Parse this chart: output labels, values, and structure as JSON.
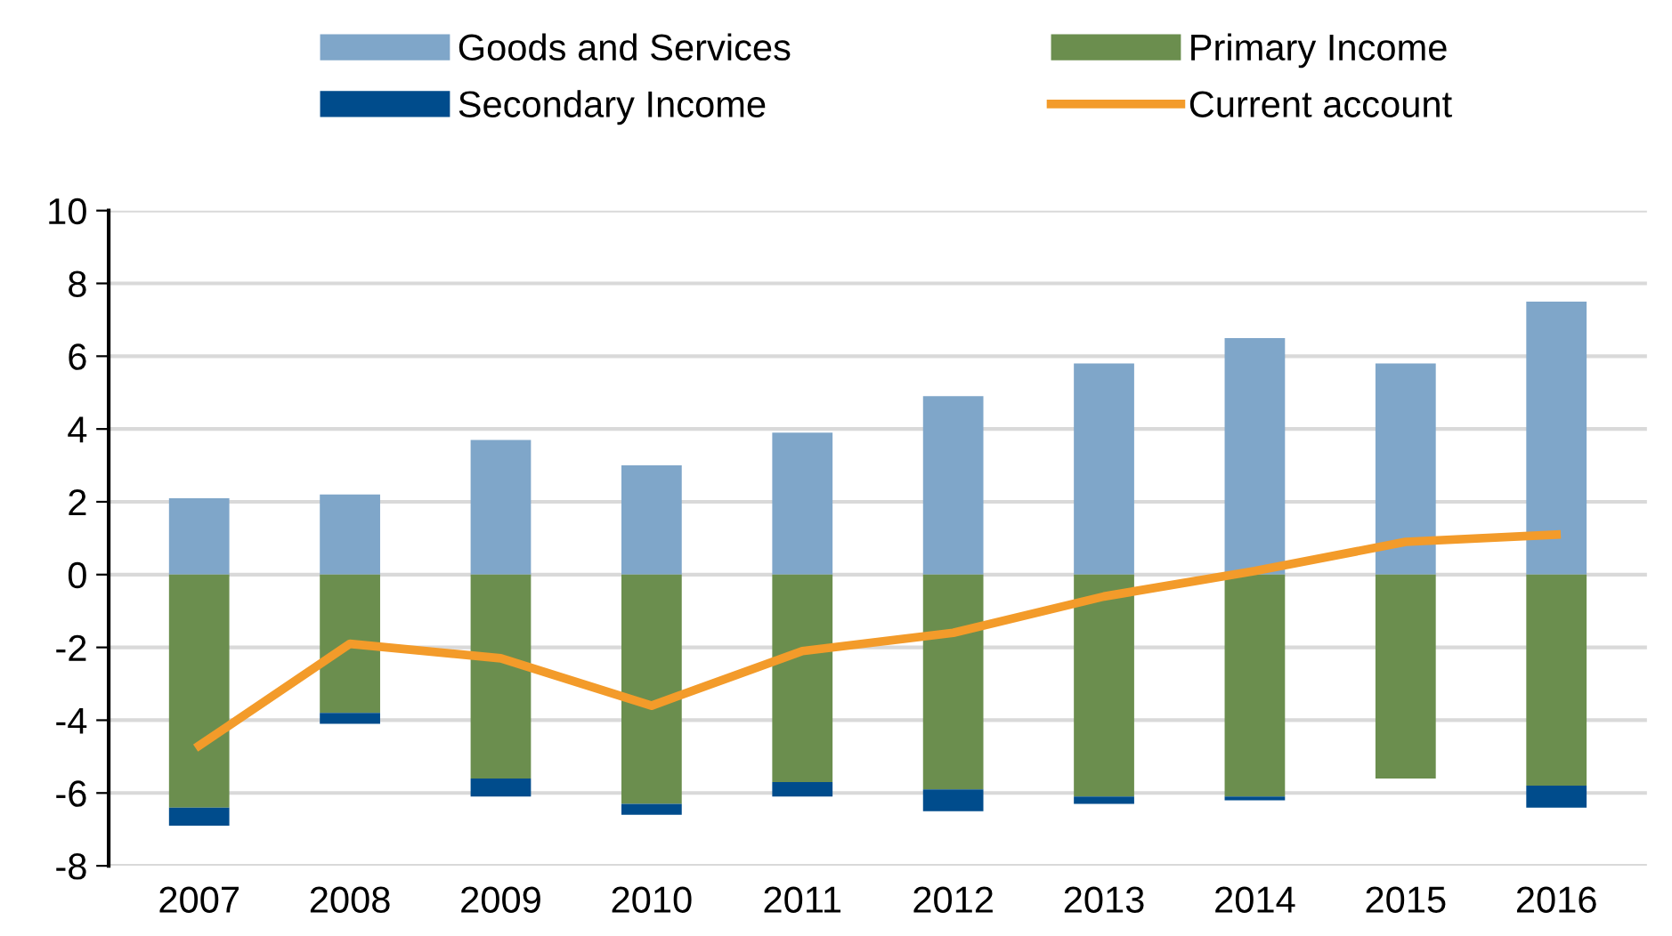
{
  "chart_data": {
    "type": "bar",
    "stacked": true,
    "categories": [
      "2007",
      "2008",
      "2009",
      "2010",
      "2011",
      "2012",
      "2013",
      "2014",
      "2015",
      "2016"
    ],
    "series": [
      {
        "name": "Goods and Services",
        "color": "#7fa6c9",
        "values": [
          2.1,
          2.2,
          3.7,
          3.0,
          3.9,
          4.9,
          5.8,
          6.5,
          5.8,
          7.5
        ]
      },
      {
        "name": "Primary Income",
        "color": "#6b8e4e",
        "values": [
          -6.4,
          -3.8,
          -5.6,
          -6.3,
          -5.7,
          -5.9,
          -6.1,
          -6.1,
          -5.6,
          -5.8
        ]
      },
      {
        "name": "Secondary Income",
        "color": "#004c8c",
        "values": [
          -0.5,
          -0.3,
          -0.5,
          -0.3,
          -0.4,
          -0.6,
          -0.2,
          -0.1,
          0,
          -0.6
        ]
      },
      {
        "name": "Current account",
        "color": "#f39b2a",
        "type": "line",
        "values": [
          -4.7,
          -1.9,
          -2.3,
          -3.6,
          -2.1,
          -1.6,
          -0.6,
          0.1,
          0.9,
          1.1
        ]
      }
    ],
    "ylim": [
      -8,
      10
    ],
    "yticks": [
      -8,
      -6,
      -4,
      -2,
      0,
      2,
      4,
      6,
      8,
      10
    ],
    "grid": "y",
    "legend": "top",
    "marker": "none",
    "line_style": "solid"
  }
}
